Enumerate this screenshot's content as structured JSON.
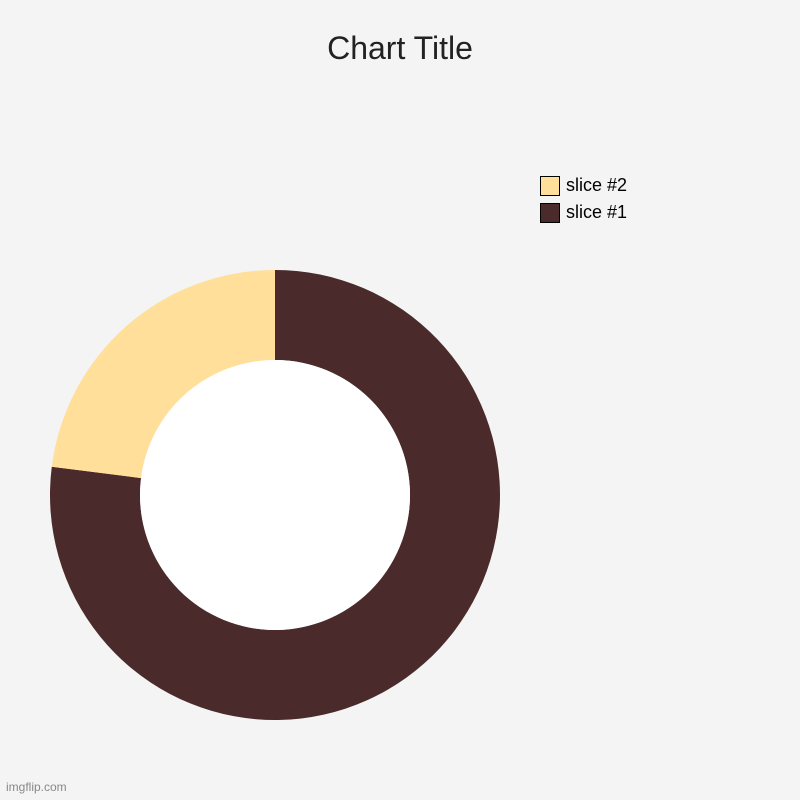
{
  "chart": {
    "type": "donut",
    "title": "Chart Title",
    "title_fontsize": 32,
    "title_color": "#222222",
    "background_color": "#f4f4f4",
    "slices": [
      {
        "label": "slice #1",
        "value": 77,
        "color": "#4a2a2a"
      },
      {
        "label": "slice #2",
        "value": 23,
        "color": "#ffdf99"
      }
    ],
    "start_angle_deg": -90,
    "outer_radius": 225,
    "inner_radius": 135,
    "inner_hole_fill": "#ffffff",
    "legend_order": [
      1,
      0
    ],
    "legend_fontsize": 18,
    "legend_swatch_border": "#000000",
    "watermark": "imgflip.com"
  }
}
